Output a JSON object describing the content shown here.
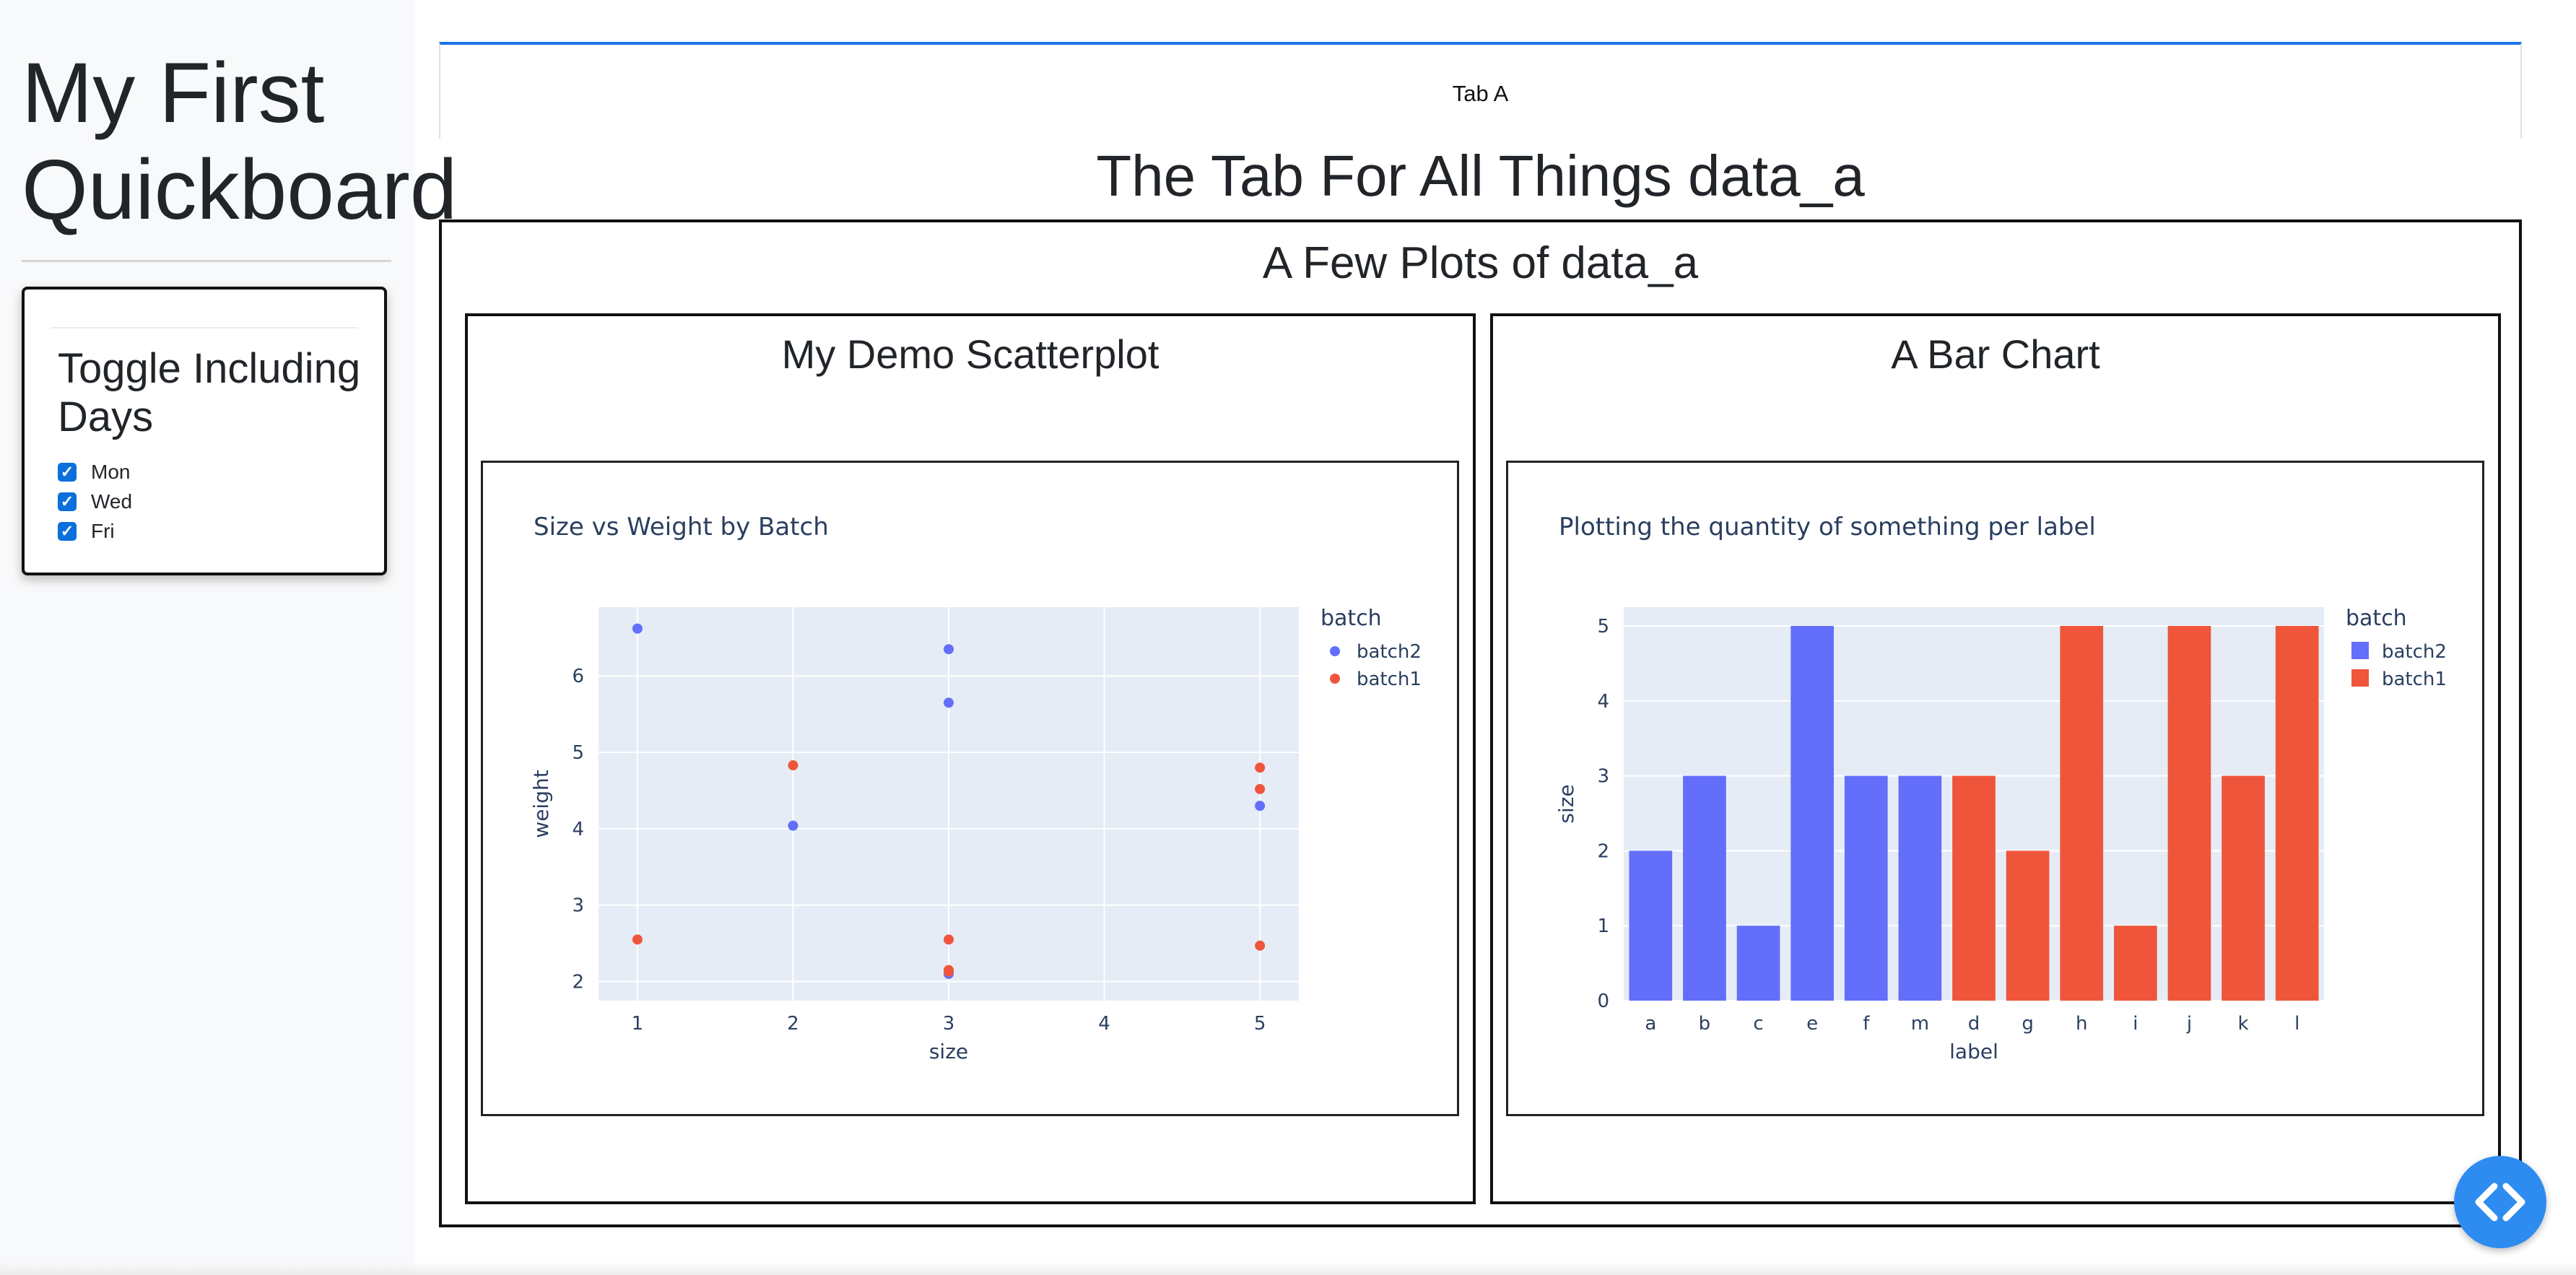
{
  "sidebar": {
    "title": "My First Quickboard",
    "toggle": {
      "heading": "Toggle Including Days",
      "options": [
        {
          "label": "Mon",
          "checked": true
        },
        {
          "label": "Wed",
          "checked": true
        },
        {
          "label": "Fri",
          "checked": true
        }
      ]
    }
  },
  "tabs": [
    {
      "label": "Tab A",
      "active": true
    }
  ],
  "main": {
    "heading": "The Tab For All Things data_a",
    "section_heading": "A Few Plots of data_a",
    "panels": [
      {
        "heading": "My Demo Scatterplot"
      },
      {
        "heading": "A Bar Chart"
      }
    ]
  },
  "colors": {
    "batch2": "#636efa",
    "batch1": "#ef553b",
    "plot_bg": "#e5ecf6",
    "accent": "#1a73e8",
    "fab": "#2e8cf0"
  },
  "fab": {
    "icon": "code-icon"
  },
  "chart_data": [
    {
      "type": "scatter",
      "title": "Size vs Weight by Batch",
      "xlabel": "size",
      "ylabel": "weight",
      "xlim": [
        0.75,
        5.25
      ],
      "ylim": [
        1.75,
        6.9
      ],
      "xticks": [
        1,
        2,
        3,
        4,
        5
      ],
      "yticks": [
        2,
        3,
        4,
        5,
        6
      ],
      "grid": true,
      "legend_title": "batch",
      "legend_position": "top-right",
      "series": [
        {
          "name": "batch2",
          "x": [
            1,
            2,
            3,
            3,
            3,
            5
          ],
          "y": [
            6.62,
            4.04,
            6.35,
            5.65,
            2.1,
            4.3
          ]
        },
        {
          "name": "batch1",
          "x": [
            1,
            2,
            3,
            3,
            3,
            5,
            5,
            5
          ],
          "y": [
            2.55,
            4.83,
            2.55,
            2.15,
            2.13,
            4.8,
            4.52,
            2.47
          ]
        }
      ]
    },
    {
      "type": "bar",
      "title": "Plotting the quantity of something per label",
      "xlabel": "label",
      "ylabel": "size",
      "ylim": [
        0,
        5.25
      ],
      "yticks": [
        0,
        1,
        2,
        3,
        4,
        5
      ],
      "grid": true,
      "legend_title": "batch",
      "legend_position": "top-right",
      "categories": [
        "a",
        "b",
        "c",
        "e",
        "f",
        "m",
        "d",
        "g",
        "h",
        "i",
        "j",
        "k",
        "l"
      ],
      "series": [
        {
          "name": "batch2",
          "values": [
            2,
            3,
            1,
            5,
            3,
            3,
            null,
            null,
            null,
            null,
            null,
            null,
            null
          ]
        },
        {
          "name": "batch1",
          "values": [
            null,
            null,
            null,
            null,
            null,
            null,
            3,
            2,
            5,
            1,
            5,
            3,
            5
          ]
        }
      ]
    }
  ]
}
